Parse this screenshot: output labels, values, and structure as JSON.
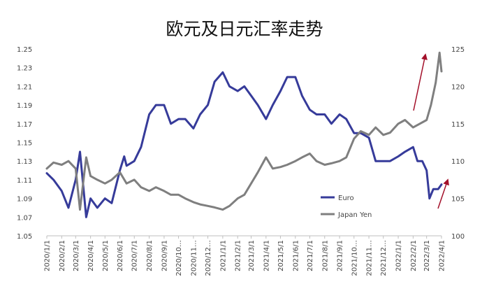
{
  "chart_data": {
    "type": "line",
    "title": "欧元及日元汇率走势",
    "x_ticks": [
      "2020/1/1",
      "2020/2/1",
      "2020/3/1",
      "2020/4/1",
      "2020/5/1",
      "2020/6/1",
      "2020/7/1",
      "2020/8/1",
      "2020/9/1",
      "2020/10/1",
      "2020/11/1",
      "2020/12/1",
      "2021/1/1",
      "2021/2/1",
      "2021/3/1",
      "2021/4/1",
      "2021/5/1",
      "2021/6/1",
      "2021/7/1",
      "2021/8/1",
      "2021/9/1",
      "2021/10/1",
      "2021/11/1",
      "2021/12/1",
      "2022/1/1",
      "2022/2/1",
      "2022/3/1",
      "2022/4/1"
    ],
    "x_tick_labels": [
      "2020/1/1",
      "2020/2/1",
      "2020/3/1",
      "2020/4/1",
      "2020/5/1",
      "2020/6/1",
      "2020/7/1",
      "2020/8/1",
      "2020/9/1",
      "2020/10…",
      "2020/11…",
      "2020/12…",
      "2021/1/1",
      "2021/2/1",
      "2021/3/1",
      "2021/4/1",
      "2021/5/1",
      "2021/6/1",
      "2021/7/1",
      "2021/8/1",
      "2021/9/1",
      "2021/10…",
      "2021/11…",
      "2021/12…",
      "2022/1/1",
      "2022/2/1",
      "2022/3/1",
      "2022/4/1"
    ],
    "y_left": {
      "ylim": [
        1.05,
        1.25
      ],
      "ticks": [
        "1.05",
        "1.07",
        "1.09",
        "1.11",
        "1.13",
        "1.15",
        "1.17",
        "1.19",
        "1.21",
        "1.23",
        "1.25"
      ]
    },
    "y_right": {
      "ylim": [
        100,
        125
      ],
      "ticks": [
        "100",
        "105",
        "110",
        "115",
        "120",
        "125"
      ]
    },
    "legend_position": "right",
    "series": [
      {
        "name": "Euro",
        "axis": "left",
        "color": "#363b9a",
        "x": [
          "2020/1/1",
          "2020/1/15",
          "2020/2/1",
          "2020/2/15",
          "2020/3/1",
          "2020/3/10",
          "2020/3/23",
          "2020/4/1",
          "2020/4/15",
          "2020/5/1",
          "2020/5/15",
          "2020/6/1",
          "2020/6/10",
          "2020/6/15",
          "2020/7/1",
          "2020/7/15",
          "2020/8/1",
          "2020/8/15",
          "2020/9/1",
          "2020/9/15",
          "2020/10/1",
          "2020/10/15",
          "2020/11/1",
          "2020/11/15",
          "2020/12/1",
          "2020/12/15",
          "2021/1/1",
          "2021/1/15",
          "2021/2/1",
          "2021/2/15",
          "2021/3/1",
          "2021/3/15",
          "2021/4/1",
          "2021/4/15",
          "2021/5/1",
          "2021/5/15",
          "2021/6/1",
          "2021/6/15",
          "2021/7/1",
          "2021/7/15",
          "2021/8/1",
          "2021/8/15",
          "2021/9/1",
          "2021/9/15",
          "2021/10/1",
          "2021/10/15",
          "2021/11/1",
          "2021/11/15",
          "2021/12/1",
          "2021/12/15",
          "2022/1/1",
          "2022/1/15",
          "2022/2/1",
          "2022/2/10",
          "2022/2/20",
          "2022/3/1",
          "2022/3/7",
          "2022/3/15",
          "2022/3/25",
          "2022/4/1"
        ],
        "values": [
          1.117,
          1.11,
          1.098,
          1.08,
          1.11,
          1.14,
          1.07,
          1.09,
          1.08,
          1.09,
          1.085,
          1.12,
          1.135,
          1.125,
          1.13,
          1.145,
          1.18,
          1.19,
          1.19,
          1.17,
          1.175,
          1.175,
          1.165,
          1.18,
          1.19,
          1.215,
          1.225,
          1.21,
          1.205,
          1.21,
          1.2,
          1.19,
          1.175,
          1.19,
          1.205,
          1.22,
          1.22,
          1.2,
          1.185,
          1.18,
          1.18,
          1.17,
          1.18,
          1.175,
          1.16,
          1.16,
          1.155,
          1.13,
          1.13,
          1.13,
          1.135,
          1.14,
          1.145,
          1.13,
          1.13,
          1.12,
          1.09,
          1.1,
          1.1,
          1.105
        ]
      },
      {
        "name": "Japan Yen",
        "axis": "right",
        "color": "#7f7f7f",
        "x": [
          "2020/1/1",
          "2020/1/15",
          "2020/2/1",
          "2020/2/15",
          "2020/3/1",
          "2020/3/10",
          "2020/3/23",
          "2020/4/1",
          "2020/4/15",
          "2020/5/1",
          "2020/5/15",
          "2020/6/1",
          "2020/6/15",
          "2020/7/1",
          "2020/7/15",
          "2020/8/1",
          "2020/8/15",
          "2020/9/1",
          "2020/9/15",
          "2020/10/1",
          "2020/10/15",
          "2020/11/1",
          "2020/11/15",
          "2020/12/1",
          "2020/12/15",
          "2021/1/1",
          "2021/1/15",
          "2021/2/1",
          "2021/2/15",
          "2021/3/1",
          "2021/3/15",
          "2021/4/1",
          "2021/4/15",
          "2021/5/1",
          "2021/5/15",
          "2021/6/1",
          "2021/6/15",
          "2021/7/1",
          "2021/7/15",
          "2021/8/1",
          "2021/8/15",
          "2021/9/1",
          "2021/9/15",
          "2021/10/1",
          "2021/10/15",
          "2021/11/1",
          "2021/11/15",
          "2021/12/1",
          "2021/12/15",
          "2022/1/1",
          "2022/1/15",
          "2022/2/1",
          "2022/2/15",
          "2022/3/1",
          "2022/3/10",
          "2022/3/20",
          "2022/3/28",
          "2022/4/1"
        ],
        "values": [
          109.0,
          109.8,
          109.5,
          110.0,
          109.0,
          103.5,
          110.5,
          108.0,
          107.5,
          107.0,
          107.5,
          108.5,
          107.0,
          107.5,
          106.5,
          106.0,
          106.5,
          106.0,
          105.5,
          105.5,
          105.0,
          104.5,
          104.2,
          104.0,
          103.8,
          103.5,
          104.0,
          105.0,
          105.5,
          107.0,
          108.5,
          110.5,
          109.0,
          109.2,
          109.5,
          110.0,
          110.5,
          111.0,
          110.0,
          109.5,
          109.7,
          110.0,
          110.5,
          113.0,
          114.0,
          113.5,
          114.5,
          113.5,
          113.8,
          115.0,
          115.5,
          114.5,
          115.0,
          115.5,
          117.5,
          120.5,
          124.5,
          122.0
        ]
      }
    ]
  }
}
